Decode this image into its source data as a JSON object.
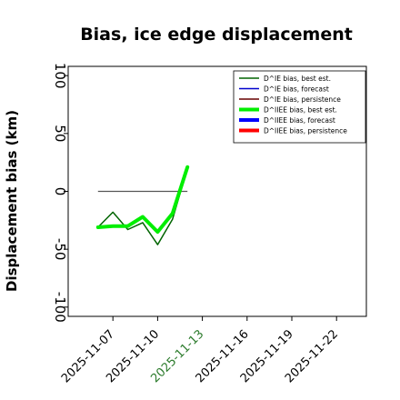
{
  "chart_data": {
    "type": "line",
    "title": "Bias, ice edge displacement",
    "xlabel": "",
    "ylabel": "Displacement bias (km)",
    "xlim": [
      "2025-11-04",
      "2025-11-24"
    ],
    "ylim": [
      -108,
      108
    ],
    "y_ticks": [
      100,
      50,
      0,
      -50,
      -100
    ],
    "x_ticks": [
      {
        "date": "2025-11-07",
        "label": "2025-11-07",
        "color": "#000000"
      },
      {
        "date": "2025-11-10",
        "label": "2025-11-10",
        "color": "#000000"
      },
      {
        "date": "2025-11-13",
        "label": "2025-11-13",
        "color": "#2a7a2a"
      },
      {
        "date": "2025-11-16",
        "label": "2025-11-16",
        "color": "#000000"
      },
      {
        "date": "2025-11-19",
        "label": "2025-11-19",
        "color": "#000000"
      },
      {
        "date": "2025-11-22",
        "label": "2025-11-22",
        "color": "#000000"
      }
    ],
    "legend_position": "top-right",
    "series": [
      {
        "name": "D^IE bias, best est.",
        "color": "#006400",
        "width": 1.5,
        "points": [
          [
            "2025-11-06",
            -31
          ],
          [
            "2025-11-07",
            -18
          ],
          [
            "2025-11-08",
            -33
          ],
          [
            "2025-11-09",
            -27
          ],
          [
            "2025-11-10",
            -46
          ],
          [
            "2025-11-11",
            -24
          ],
          [
            "2025-11-12",
            20
          ]
        ]
      },
      {
        "name": "D^IE bias, forecast",
        "color": "#0000cc",
        "width": 1.5,
        "points": []
      },
      {
        "name": "D^IE bias, persistence",
        "color": "#660000",
        "width": 1.5,
        "points": []
      },
      {
        "name": "D^IIEE bias, best est.",
        "color": "#00ee00",
        "width": 4,
        "points": [
          [
            "2025-11-06",
            -31
          ],
          [
            "2025-11-07",
            -30
          ],
          [
            "2025-11-08",
            -30
          ],
          [
            "2025-11-09",
            -22
          ],
          [
            "2025-11-10",
            -35
          ],
          [
            "2025-11-11",
            -19
          ],
          [
            "2025-11-12",
            21
          ]
        ]
      },
      {
        "name": "D^IIEE bias, forecast",
        "color": "#0000ff",
        "width": 4,
        "points": []
      },
      {
        "name": "D^IIEE bias, persistence",
        "color": "#ff0000",
        "width": 4,
        "points": []
      }
    ],
    "reference_line": {
      "y": 0,
      "x_start": "2025-11-06",
      "x_end": "2025-11-12",
      "color": "#555555"
    }
  }
}
